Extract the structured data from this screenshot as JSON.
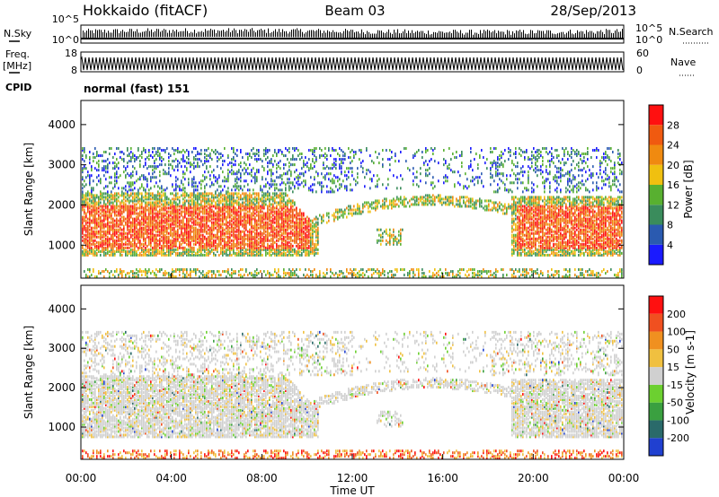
{
  "header": {
    "station": "Hokkaido (fitACF)",
    "beam": "Beam 03",
    "date": "28/Sep/2013"
  },
  "side_labels": {
    "nsky": "N.Sky",
    "nsearch": "N.Search",
    "freq": "Freq.",
    "freq_unit": "[MHz]",
    "nave": "Nave",
    "cpid": "CPID"
  },
  "mode_text": "normal (fast) 151",
  "chart_data": [
    {
      "type": "scatter",
      "name": "noise",
      "ylabel_left": "N.Sky",
      "ylabel_right": "N.Search",
      "left_ticks": [
        "10^5",
        "10^0"
      ],
      "right_ticks": [
        "10^5",
        "10^0"
      ],
      "scale": "log"
    },
    {
      "type": "line",
      "name": "frequency",
      "ylabel_left": "Freq. [MHz]",
      "ylabel_right": "Nave",
      "left_ticks": [
        "18",
        "8"
      ],
      "right_ticks": [
        "60",
        "0"
      ],
      "ylim_left": [
        8,
        18
      ],
      "ylim_right": [
        0,
        60
      ]
    },
    {
      "type": "heatmap",
      "name": "power",
      "ylabel": "Slant Range [km]",
      "y_ticks": [
        "1000",
        "2000",
        "3000",
        "4000"
      ],
      "ylim": [
        180,
        4600
      ],
      "colorbar_label": "Power [dB]",
      "colorbar_ticks": [
        "4",
        "8",
        "12",
        "16",
        "20",
        "24",
        "28"
      ],
      "colorbar_colors": [
        "#1a1aff",
        "#2a5ab0",
        "#3a8c5c",
        "#58b030",
        "#f0c010",
        "#f08a10",
        "#f05a10",
        "#ff1010"
      ]
    },
    {
      "type": "heatmap",
      "name": "velocity",
      "ylabel": "Slant Range [km]",
      "y_ticks": [
        "1000",
        "2000",
        "3000",
        "4000"
      ],
      "ylim": [
        180,
        4600
      ],
      "colorbar_label": "Velocity [m s-1]",
      "colorbar_ticks": [
        "200",
        "100",
        "50",
        "15",
        "-15",
        "-50",
        "-100",
        "-200"
      ],
      "colorbar_colors": [
        "#2040d0",
        "#2a6a6a",
        "#3aa040",
        "#6cd030",
        "#d0d0d0",
        "#f0c040",
        "#f09020",
        "#f05020",
        "#ff1010"
      ]
    }
  ],
  "x_axis": {
    "label": "Time UT",
    "ticks": [
      "00:00",
      "04:00",
      "08:00",
      "12:00",
      "16:00",
      "20:00",
      "00:00"
    ]
  }
}
